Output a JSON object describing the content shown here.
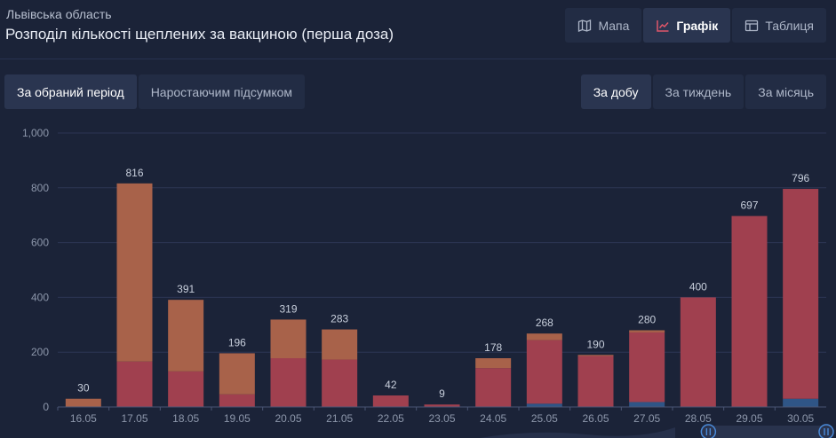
{
  "header": {
    "region": "Львівська область",
    "title": "Розподіл кількості щеплених за вакциною (перша доза)"
  },
  "view_tabs": [
    {
      "label": "Мапа",
      "icon": "map-icon",
      "active": false
    },
    {
      "label": "Графік",
      "icon": "chart-line-icon",
      "active": true
    },
    {
      "label": "Таблиця",
      "icon": "table-icon",
      "active": false
    }
  ],
  "mode_tabs": [
    {
      "label": "За обраний період",
      "active": true
    },
    {
      "label": "Наростаючим підсумком",
      "active": false
    }
  ],
  "period_tabs": [
    {
      "label": "За добу",
      "active": true
    },
    {
      "label": "За тиждень",
      "active": false
    },
    {
      "label": "За місяць",
      "active": false
    }
  ],
  "colors": {
    "series_red": "#a0404f",
    "series_orange": "#a8624a",
    "series_blue": "#2f5586",
    "accent_red": "#e0566a",
    "grid": "#2c3654"
  },
  "chart_data": {
    "type": "bar",
    "stacked": true,
    "categories": [
      "16.05",
      "17.05",
      "18.05",
      "19.05",
      "20.05",
      "21.05",
      "22.05",
      "23.05",
      "24.05",
      "25.05",
      "26.05",
      "27.05",
      "28.05",
      "29.05",
      "30.05"
    ],
    "series": [
      {
        "color": "#2f5586",
        "values": [
          0,
          0,
          0,
          0,
          0,
          0,
          0,
          0,
          0,
          12,
          0,
          18,
          0,
          0,
          30
        ]
      },
      {
        "color": "#a0404f",
        "values": [
          0,
          166,
          130,
          46,
          178,
          173,
          42,
          9,
          142,
          232,
          186,
          254,
          400,
          697,
          766
        ]
      },
      {
        "color": "#a8624a",
        "values": [
          30,
          650,
          261,
          150,
          141,
          110,
          0,
          0,
          36,
          24,
          4,
          8,
          0,
          0,
          0
        ]
      }
    ],
    "totals": [
      30,
      816,
      391,
      196,
      319,
      283,
      42,
      9,
      178,
      268,
      190,
      280,
      400,
      697,
      796
    ],
    "ylim": [
      0,
      1000
    ],
    "yticks": [
      0,
      200,
      400,
      600,
      800,
      1000
    ],
    "ytick_labels": [
      "0",
      "200",
      "400",
      "600",
      "800",
      "1,000"
    ],
    "grid": true
  }
}
